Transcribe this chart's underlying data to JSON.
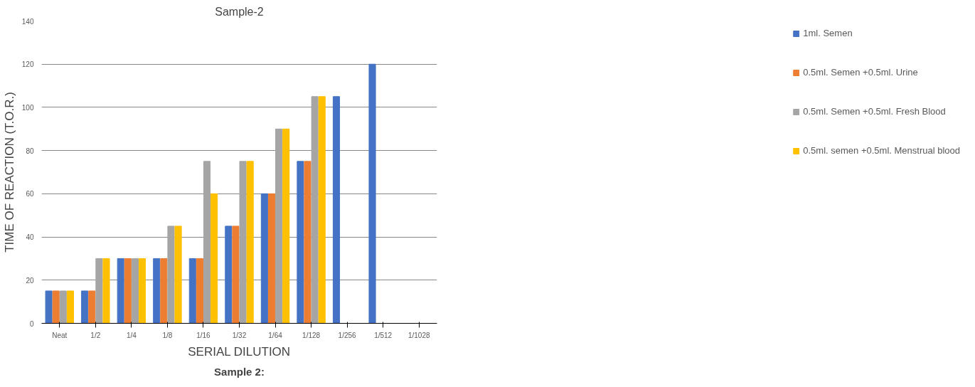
{
  "chart_data": {
    "type": "bar",
    "title": "Sample-2",
    "xlabel": "SERIAL DILUTION",
    "ylabel": "TIME OF REACTION (T.O.R.)",
    "categories": [
      "Neat",
      "1/2",
      "1/4",
      "1/8",
      "1/16",
      "1/32",
      "1/64",
      "1/128",
      "1/256",
      "1/512",
      "1/1028"
    ],
    "series": [
      {
        "name": "1ml. Semen",
        "color": "#4472c4",
        "values": [
          15,
          15,
          30,
          30,
          30,
          45,
          60,
          75,
          105,
          120,
          null
        ]
      },
      {
        "name": "0.5ml. Semen +0.5ml. Urine",
        "color": "#ed7d31",
        "values": [
          15,
          15,
          30,
          30,
          30,
          45,
          60,
          75,
          null,
          null,
          null
        ]
      },
      {
        "name": "0.5ml. Semen +0.5ml. Fresh Blood",
        "color": "#a5a5a5",
        "values": [
          15,
          30,
          30,
          45,
          75,
          75,
          90,
          105,
          null,
          null,
          null
        ]
      },
      {
        "name": "0.5ml. semen +0.5ml. Menstrual blood",
        "color": "#ffc000",
        "values": [
          15,
          30,
          30,
          45,
          60,
          75,
          90,
          105,
          null,
          null,
          null
        ]
      }
    ],
    "ylim": [
      0,
      140
    ],
    "yticks": [
      0,
      20,
      40,
      60,
      80,
      100,
      120,
      140
    ],
    "grid": "y",
    "legend": "right",
    "annotations": [
      "Sample 2:"
    ]
  }
}
